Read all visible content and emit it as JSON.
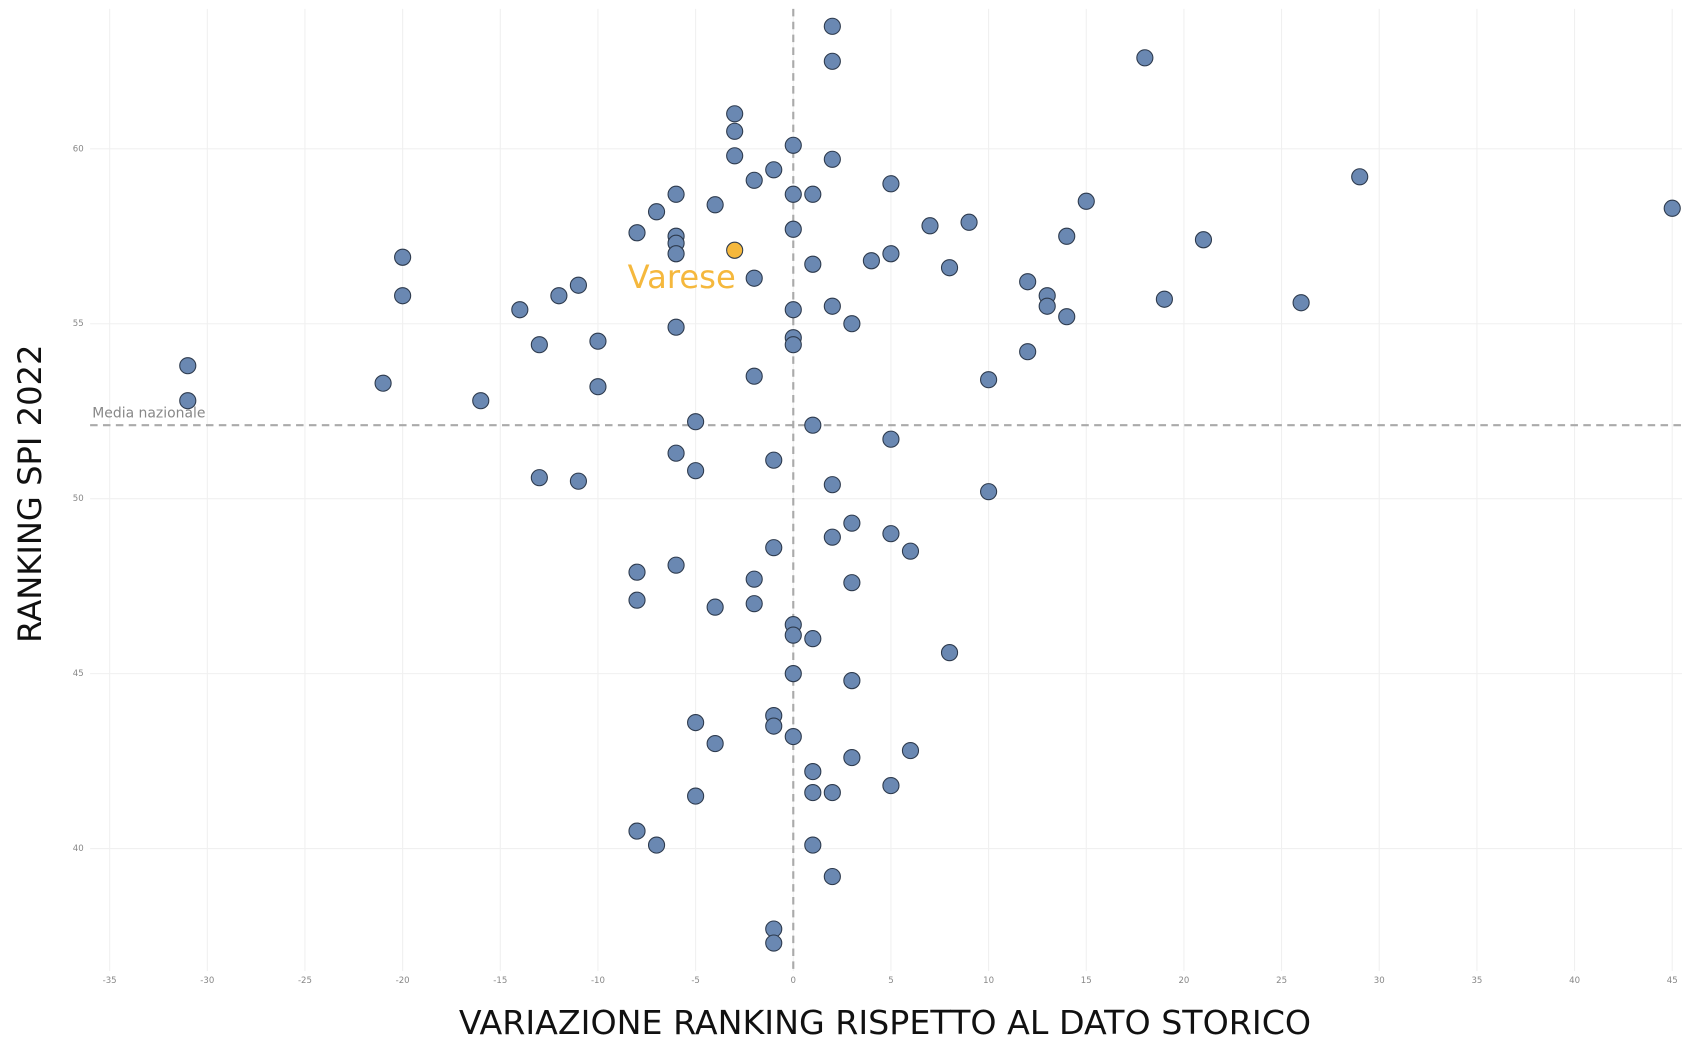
{
  "chart_data": {
    "type": "scatter",
    "x_label": "VARIAZIONE RANKING RISPETTO AL DATO STORICO",
    "y_label": "RANKING SPI 2022",
    "xlim": [
      -36,
      45.5
    ],
    "ylim": [
      36.5,
      64
    ],
    "xticks": [
      -35,
      -30,
      -25,
      -20,
      -15,
      -10,
      -5,
      0,
      5,
      10,
      15,
      20,
      25,
      30,
      35,
      40,
      45
    ],
    "yticks": [
      40,
      45,
      50,
      55,
      60
    ],
    "grid": true,
    "hline": {
      "value": 52.1,
      "label": "Media nazionale"
    },
    "vline": 0,
    "series": [
      {
        "color": "#6a88b2",
        "x": [
          2,
          2,
          18,
          -3,
          -3,
          0,
          -3,
          2,
          -1,
          -2,
          5,
          -6,
          0,
          1,
          29,
          -4,
          15,
          -7,
          45,
          7,
          9,
          0,
          -8,
          -6,
          14,
          21,
          -6,
          -20,
          -6,
          5,
          4,
          1,
          8,
          -2,
          -11,
          12,
          -12,
          -20,
          13,
          19,
          26,
          13,
          2,
          -14,
          0,
          14,
          3,
          -6,
          -10,
          0,
          0,
          -13,
          12,
          -31,
          -2,
          10,
          -21,
          -10,
          -31,
          -16,
          -5,
          1,
          5,
          -6,
          -1,
          -5,
          -13,
          -11,
          2,
          10,
          3,
          5,
          2,
          -1,
          6,
          -6,
          -8,
          -2,
          3,
          -8,
          -2,
          -4,
          0,
          0,
          1,
          8,
          0,
          3,
          -1,
          -5,
          -1,
          0,
          -4,
          6,
          3,
          1,
          5,
          1,
          2,
          -5,
          -8,
          -7,
          1,
          2,
          -1,
          -1
        ],
        "y": [
          63.5,
          62.5,
          62.6,
          61.0,
          60.5,
          60.1,
          59.8,
          59.7,
          59.4,
          59.1,
          59.0,
          58.7,
          58.7,
          58.7,
          59.2,
          58.4,
          58.5,
          58.2,
          58.3,
          57.8,
          57.9,
          57.7,
          57.6,
          57.5,
          57.5,
          57.4,
          57.3,
          56.9,
          57.0,
          57.0,
          56.8,
          56.7,
          56.6,
          56.3,
          56.1,
          56.2,
          55.8,
          55.8,
          55.8,
          55.7,
          55.6,
          55.5,
          55.5,
          55.4,
          55.4,
          55.2,
          55.0,
          54.9,
          54.5,
          54.6,
          54.4,
          54.4,
          54.2,
          53.8,
          53.5,
          53.4,
          53.3,
          53.2,
          52.8,
          52.8,
          52.2,
          52.1,
          51.7,
          51.3,
          51.1,
          50.8,
          50.6,
          50.5,
          50.4,
          50.2,
          49.3,
          49.0,
          48.9,
          48.6,
          48.5,
          48.1,
          47.9,
          47.7,
          47.6,
          47.1,
          47.0,
          46.9,
          46.4,
          46.1,
          46.0,
          45.6,
          45.0,
          44.8,
          43.8,
          43.6,
          43.5,
          43.2,
          43.0,
          42.8,
          42.6,
          42.2,
          41.8,
          41.6,
          41.6,
          41.5,
          40.5,
          40.1,
          40.1,
          39.2,
          37.7,
          37.3
        ]
      },
      {
        "name": "Varese",
        "color": "#f5b83d",
        "x": [
          -3
        ],
        "y": [
          57.1
        ]
      }
    ]
  }
}
